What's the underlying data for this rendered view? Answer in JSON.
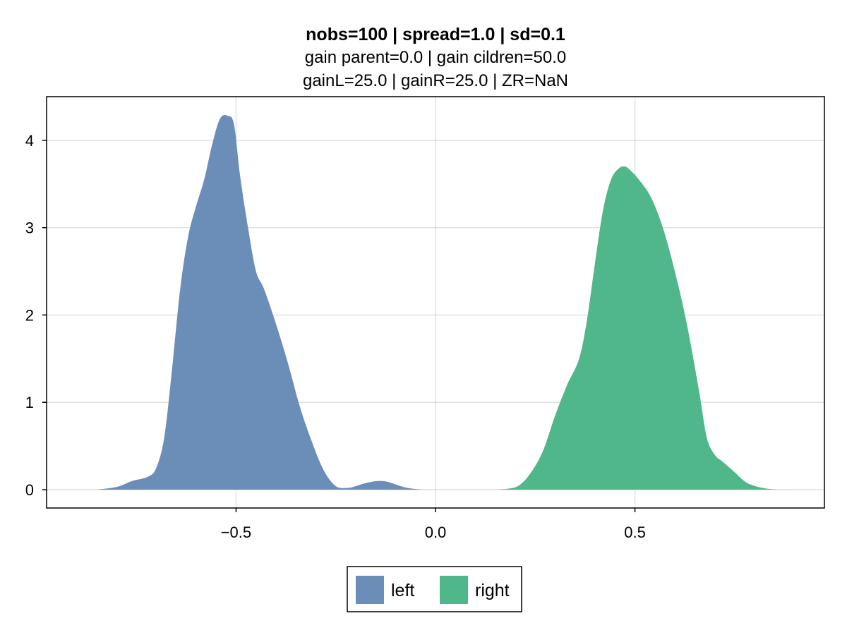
{
  "chart_data": {
    "type": "area",
    "title": "nobs=100 | spread=1.0 | sd=0.1",
    "subtitle_lines": [
      "gain parent=0.0 | gain cildren=50.0",
      "gainL=25.0 | gainR=25.0 | ZR=NaN"
    ],
    "xlabel": "",
    "ylabel": "",
    "xlim": [
      -0.975,
      0.975
    ],
    "ylim": [
      -0.21,
      4.5
    ],
    "x_ticks": [
      -0.5,
      0.0,
      0.5
    ],
    "x_tick_labels": [
      "−0.5",
      "0.0",
      "0.5"
    ],
    "y_ticks": [
      0,
      1,
      2,
      3,
      4
    ],
    "y_tick_labels": [
      "0",
      "1",
      "2",
      "3",
      "4"
    ],
    "grid": true,
    "legend_position": "bottom",
    "series": [
      {
        "name": "left",
        "color": "#6b8eb9",
        "x": [
          -0.85,
          -0.8,
          -0.76,
          -0.72,
          -0.7,
          -0.68,
          -0.66,
          -0.64,
          -0.62,
          -0.6,
          -0.58,
          -0.56,
          -0.54,
          -0.52,
          -0.505,
          -0.49,
          -0.47,
          -0.45,
          -0.43,
          -0.4,
          -0.37,
          -0.34,
          -0.31,
          -0.28,
          -0.25,
          -0.22,
          -0.2,
          -0.18,
          -0.16,
          -0.14,
          -0.12,
          -0.1,
          -0.07,
          -0.03,
          0.0
        ],
        "y": [
          0.0,
          0.03,
          0.1,
          0.15,
          0.25,
          0.6,
          1.4,
          2.3,
          2.9,
          3.25,
          3.55,
          3.95,
          4.25,
          4.28,
          4.18,
          3.6,
          3.0,
          2.5,
          2.3,
          1.9,
          1.45,
          0.95,
          0.55,
          0.22,
          0.04,
          0.02,
          0.04,
          0.07,
          0.09,
          0.1,
          0.09,
          0.06,
          0.02,
          0.0,
          0.0
        ]
      },
      {
        "name": "right",
        "color": "#4fb78a",
        "x": [
          0.15,
          0.18,
          0.21,
          0.24,
          0.27,
          0.3,
          0.33,
          0.36,
          0.38,
          0.4,
          0.42,
          0.44,
          0.46,
          0.475,
          0.49,
          0.51,
          0.54,
          0.57,
          0.6,
          0.63,
          0.66,
          0.68,
          0.7,
          0.72,
          0.75,
          0.78,
          0.82,
          0.86,
          0.9
        ],
        "y": [
          0.0,
          0.01,
          0.05,
          0.2,
          0.45,
          0.85,
          1.2,
          1.5,
          1.95,
          2.6,
          3.2,
          3.55,
          3.68,
          3.7,
          3.65,
          3.55,
          3.35,
          3.0,
          2.5,
          1.9,
          1.15,
          0.6,
          0.4,
          0.32,
          0.2,
          0.08,
          0.02,
          0.0,
          0.0
        ]
      }
    ]
  }
}
